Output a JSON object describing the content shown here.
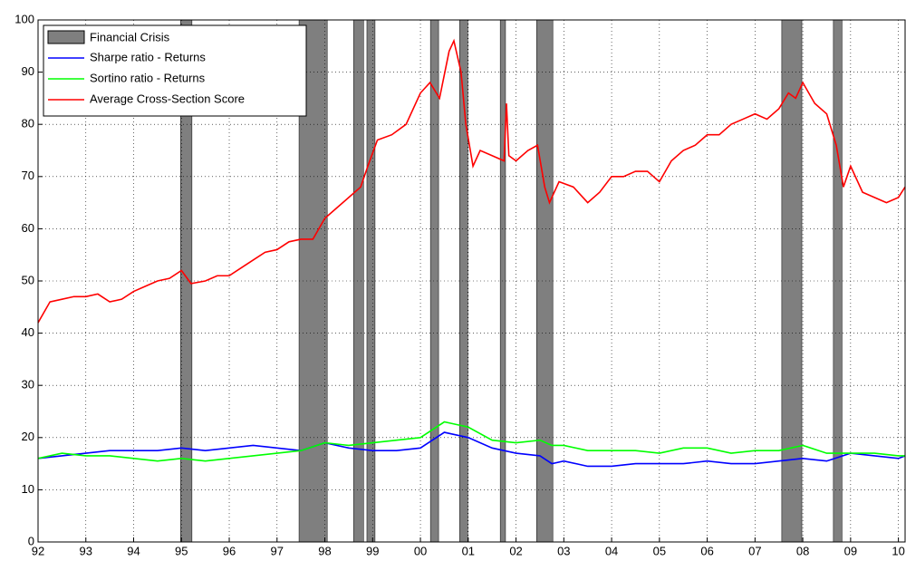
{
  "chart_data": {
    "type": "line",
    "xlim": [
      1992,
      2010.14
    ],
    "xticks": [
      {
        "value": 1992,
        "label": "92"
      },
      {
        "value": 1993,
        "label": "93"
      },
      {
        "value": 1994,
        "label": "94"
      },
      {
        "value": 1995,
        "label": "95"
      },
      {
        "value": 1996,
        "label": "96"
      },
      {
        "value": 1997,
        "label": "97"
      },
      {
        "value": 1998,
        "label": "98"
      },
      {
        "value": 1999,
        "label": "99"
      },
      {
        "value": 2000,
        "label": "00"
      },
      {
        "value": 2001,
        "label": "01"
      },
      {
        "value": 2002,
        "label": "02"
      },
      {
        "value": 2003,
        "label": "03"
      },
      {
        "value": 2004,
        "label": "04"
      },
      {
        "value": 2005,
        "label": "05"
      },
      {
        "value": 2006,
        "label": "06"
      },
      {
        "value": 2007,
        "label": "07"
      },
      {
        "value": 2008,
        "label": "08"
      },
      {
        "value": 2009,
        "label": "09"
      },
      {
        "value": 2010,
        "label": "10"
      }
    ],
    "ylim": [
      0,
      100
    ],
    "yticks": [
      0,
      10,
      20,
      30,
      40,
      50,
      60,
      70,
      80,
      90,
      100
    ],
    "grid": true,
    "legend": "upper left",
    "bands": {
      "name": "Financial Crisis",
      "color": "#7f7f7f",
      "periods": [
        [
          1994.98,
          1995.22
        ],
        [
          1997.46,
          1998.05
        ],
        [
          1998.6,
          1998.81
        ],
        [
          1998.88,
          1999.05
        ],
        [
          2000.21,
          2000.38
        ],
        [
          2000.82,
          2000.99
        ],
        [
          2001.67,
          2001.78
        ],
        [
          2002.43,
          2002.77
        ],
        [
          2007.56,
          2007.98
        ],
        [
          2008.64,
          2008.82
        ]
      ]
    },
    "series": [
      {
        "name": "Sharpe ratio - Returns",
        "color": "#0000ff",
        "x": [
          1992,
          1992.5,
          1993,
          1993.5,
          1994,
          1994.5,
          1995,
          1995.5,
          1996,
          1996.5,
          1997,
          1997.5,
          1998,
          1998.5,
          1999,
          1999.5,
          2000,
          2000.5,
          2000.75,
          2001,
          2001.5,
          2002,
          2002.5,
          2002.75,
          2003,
          2003.5,
          2004,
          2004.5,
          2005,
          2005.5,
          2006,
          2006.5,
          2007,
          2007.5,
          2008,
          2008.5,
          2009,
          2009.5,
          2010,
          2010.14
        ],
        "values": [
          16,
          16.5,
          17,
          17.5,
          17.5,
          17.5,
          18,
          17.5,
          18,
          18.5,
          18,
          17.5,
          19,
          18,
          17.5,
          17.5,
          18,
          21,
          20.5,
          20,
          18,
          17,
          16.5,
          15,
          15.5,
          14.5,
          14.5,
          15,
          15,
          15,
          15.5,
          15,
          15,
          15.5,
          16,
          15.5,
          17,
          16.5,
          16,
          16.5
        ]
      },
      {
        "name": "Sortino ratio - Returns",
        "color": "#00ff00",
        "x": [
          1992,
          1992.5,
          1993,
          1993.5,
          1994,
          1994.5,
          1995,
          1995.5,
          1996,
          1996.5,
          1997,
          1997.5,
          1998,
          1998.5,
          1999,
          1999.5,
          2000,
          2000.5,
          2000.75,
          2001,
          2001.5,
          2002,
          2002.5,
          2002.75,
          2003,
          2003.5,
          2004,
          2004.5,
          2005,
          2005.5,
          2006,
          2006.5,
          2007,
          2007.5,
          2008,
          2008.5,
          2009,
          2009.5,
          2010,
          2010.14
        ],
        "values": [
          16,
          17,
          16.5,
          16.5,
          16,
          15.5,
          16,
          15.5,
          16,
          16.5,
          17,
          17.5,
          19,
          18.5,
          19,
          19.5,
          20,
          23,
          22.5,
          22,
          19.5,
          19,
          19.5,
          18.5,
          18.5,
          17.5,
          17.5,
          17.5,
          17,
          18,
          18,
          17,
          17.5,
          17.5,
          18.5,
          17,
          17,
          17,
          16.5,
          16.5
        ]
      },
      {
        "name": "Average Cross-Section Score",
        "color": "#ff0000",
        "x": [
          1992,
          1992.25,
          1992.5,
          1992.75,
          1993,
          1993.25,
          1993.5,
          1993.75,
          1994,
          1994.25,
          1994.5,
          1994.75,
          1995,
          1995.2,
          1995.5,
          1995.75,
          1996,
          1996.25,
          1996.5,
          1996.75,
          1997,
          1997.25,
          1997.5,
          1997.75,
          1998,
          1998.25,
          1998.5,
          1998.75,
          1998.9,
          1999.1,
          1999.4,
          1999.7,
          2000,
          2000.2,
          2000.4,
          2000.6,
          2000.7,
          2000.85,
          2000.95,
          2001.1,
          2001.25,
          2001.5,
          2001.75,
          2001.8,
          2001.85,
          2002,
          2002.25,
          2002.45,
          2002.6,
          2002.7,
          2002.9,
          2003.2,
          2003.5,
          2003.75,
          2004,
          2004.25,
          2004.5,
          2004.75,
          2005,
          2005.25,
          2005.5,
          2005.75,
          2006,
          2006.25,
          2006.5,
          2006.75,
          2007,
          2007.25,
          2007.5,
          2007.7,
          2007.85,
          2008,
          2008.25,
          2008.5,
          2008.7,
          2008.85,
          2009,
          2009.25,
          2009.5,
          2009.75,
          2010,
          2010.14
        ],
        "values": [
          42,
          46,
          46.5,
          47,
          47,
          47.5,
          46,
          46.5,
          48,
          49,
          50,
          50.5,
          52,
          49.5,
          50,
          51,
          51,
          52.5,
          54,
          55.5,
          56,
          57.5,
          58,
          58,
          62,
          64,
          66,
          68,
          72,
          77,
          78,
          80,
          86,
          88,
          85,
          94,
          96,
          90,
          80,
          72,
          75,
          74,
          73,
          84,
          74,
          73,
          75,
          76,
          68,
          65,
          69,
          68,
          65,
          67,
          70,
          70,
          71,
          71,
          69,
          73,
          75,
          76,
          78,
          78,
          80,
          81,
          82,
          81,
          83,
          86,
          85,
          88,
          84,
          82,
          76,
          68,
          72,
          67,
          66,
          65,
          66,
          68
        ]
      }
    ]
  }
}
